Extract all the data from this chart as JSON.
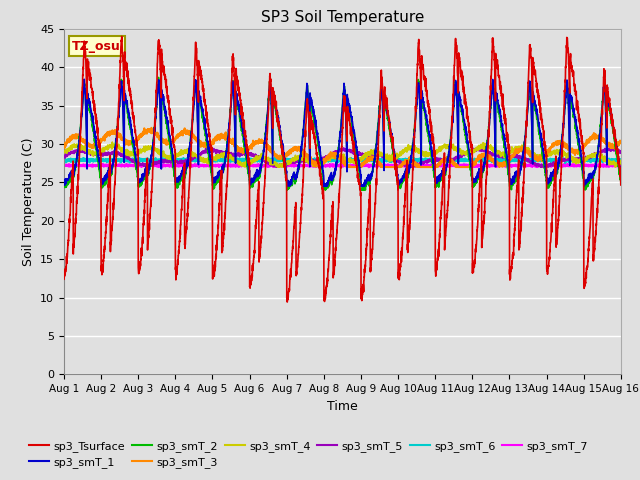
{
  "title": "SP3 Soil Temperature",
  "xlabel": "Time",
  "ylabel": "Soil Temperature (C)",
  "ylim": [
    0,
    45
  ],
  "annotation_text": "TZ_osu",
  "annotation_color": "#cc0000",
  "annotation_bg": "#ffffcc",
  "annotation_border": "#999900",
  "series_colors": {
    "sp3_Tsurface": "#dd0000",
    "sp3_smT_1": "#0000cc",
    "sp3_smT_2": "#00bb00",
    "sp3_smT_3": "#ff8800",
    "sp3_smT_4": "#cccc00",
    "sp3_smT_5": "#9900bb",
    "sp3_smT_6": "#00cccc",
    "sp3_smT_7": "#ff00ff"
  },
  "bg_color": "#e0e0e0",
  "plot_bg_color": "#e0e0e0",
  "grid_color": "#ffffff",
  "yticks": [
    0,
    5,
    10,
    15,
    20,
    25,
    30,
    35,
    40,
    45
  ],
  "xtick_labels": [
    "Aug 1",
    "Aug 2",
    "Aug 3",
    "Aug 4",
    "Aug 5",
    "Aug 6",
    "Aug 7",
    "Aug 8",
    "Aug 9",
    "Aug 10",
    "Aug 11",
    "Aug 12",
    "Aug 13",
    "Aug 14",
    "Aug 15",
    "Aug 16"
  ],
  "hours_total": 3600,
  "legend_row1": [
    "sp3_Tsurface",
    "sp3_smT_1",
    "sp3_smT_2",
    "sp3_smT_3",
    "sp3_smT_4",
    "sp3_smT_5"
  ],
  "legend_row2": [
    "sp3_smT_6",
    "sp3_smT_7"
  ]
}
